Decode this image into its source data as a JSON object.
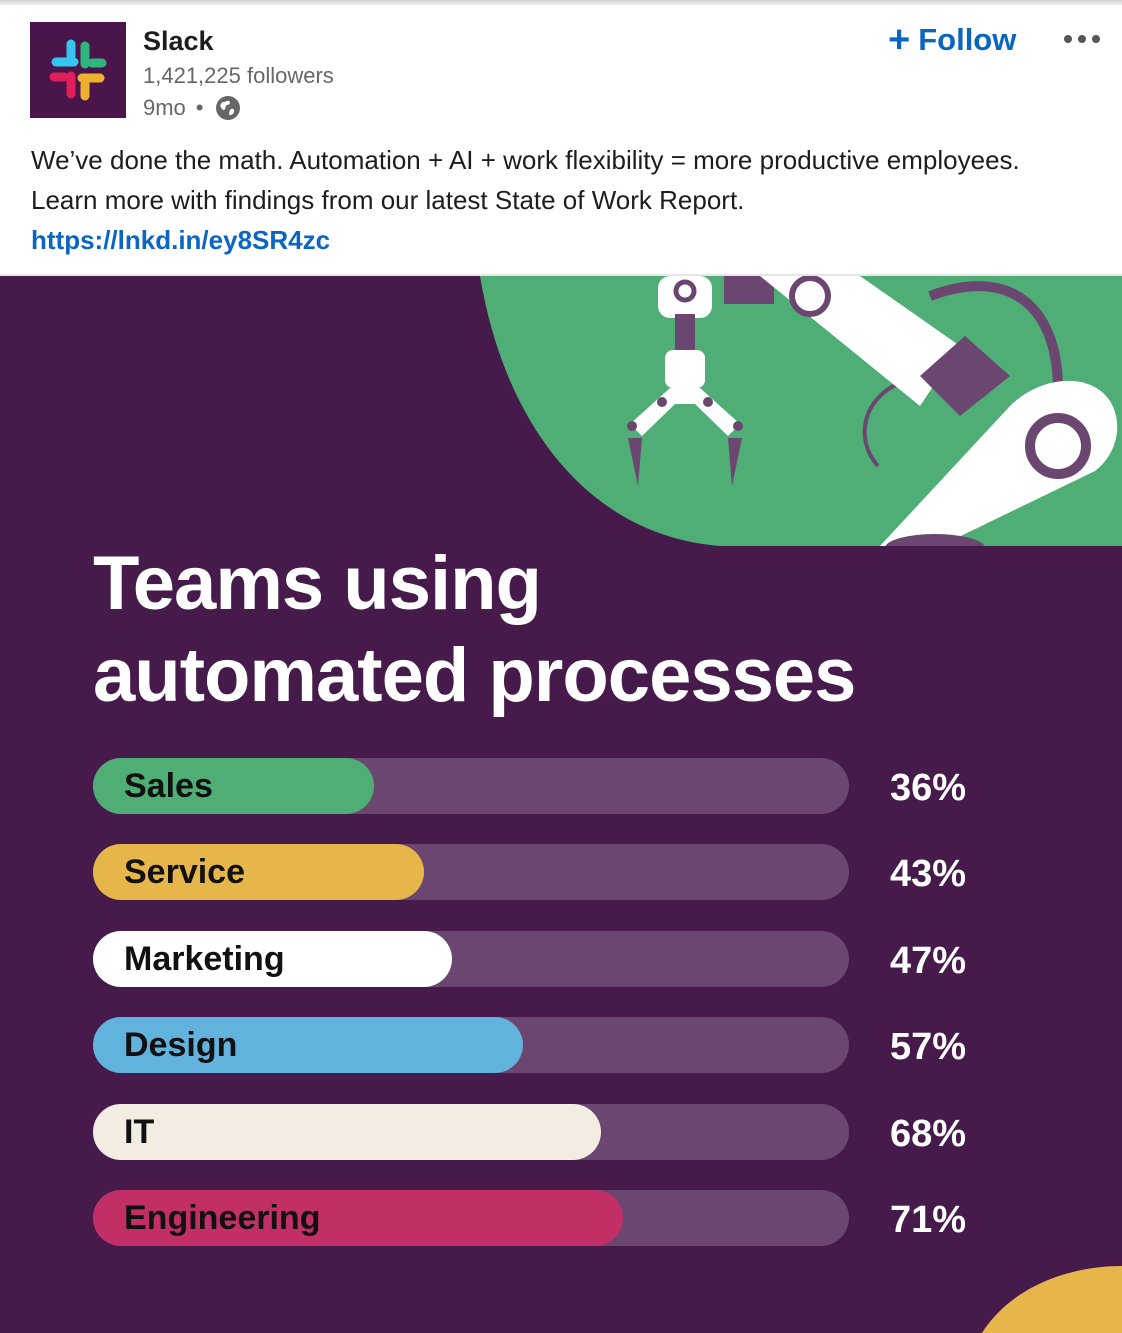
{
  "post": {
    "company": "Slack",
    "followers": "1,421,225 followers",
    "time": "9mo",
    "separator": "•",
    "follow_label": "Follow",
    "follow_icon": "+",
    "text": "We’ve done the math. Automation + AI + work flexibility = more productive employees. Learn more with findings from our latest State of Work Report.",
    "link": "https://lnkd.in/ey8SR4zc"
  },
  "icons": {
    "logo": "slack-logo",
    "visibility": "globe-icon",
    "more": "more-options-icon"
  },
  "colors": {
    "link": "#0a66c2",
    "background": "#461a4a",
    "track": "#6a4670",
    "green": "#4fae76"
  },
  "chart_data": {
    "type": "bar",
    "title": "Teams using automated processes",
    "categories": [
      "Sales",
      "Service",
      "Marketing",
      "Design",
      "IT",
      "Engineering"
    ],
    "values": [
      36,
      43,
      47,
      57,
      68,
      71
    ],
    "value_labels": [
      "36%",
      "43%",
      "47%",
      "57%",
      "68%",
      "71%"
    ],
    "colors": [
      "#4fae76",
      "#e6b64b",
      "#ffffff",
      "#62b2de",
      "#f3ece2",
      "#c22f67"
    ],
    "ylim": [
      0,
      100
    ],
    "orientation": "horizontal",
    "grid": false
  }
}
